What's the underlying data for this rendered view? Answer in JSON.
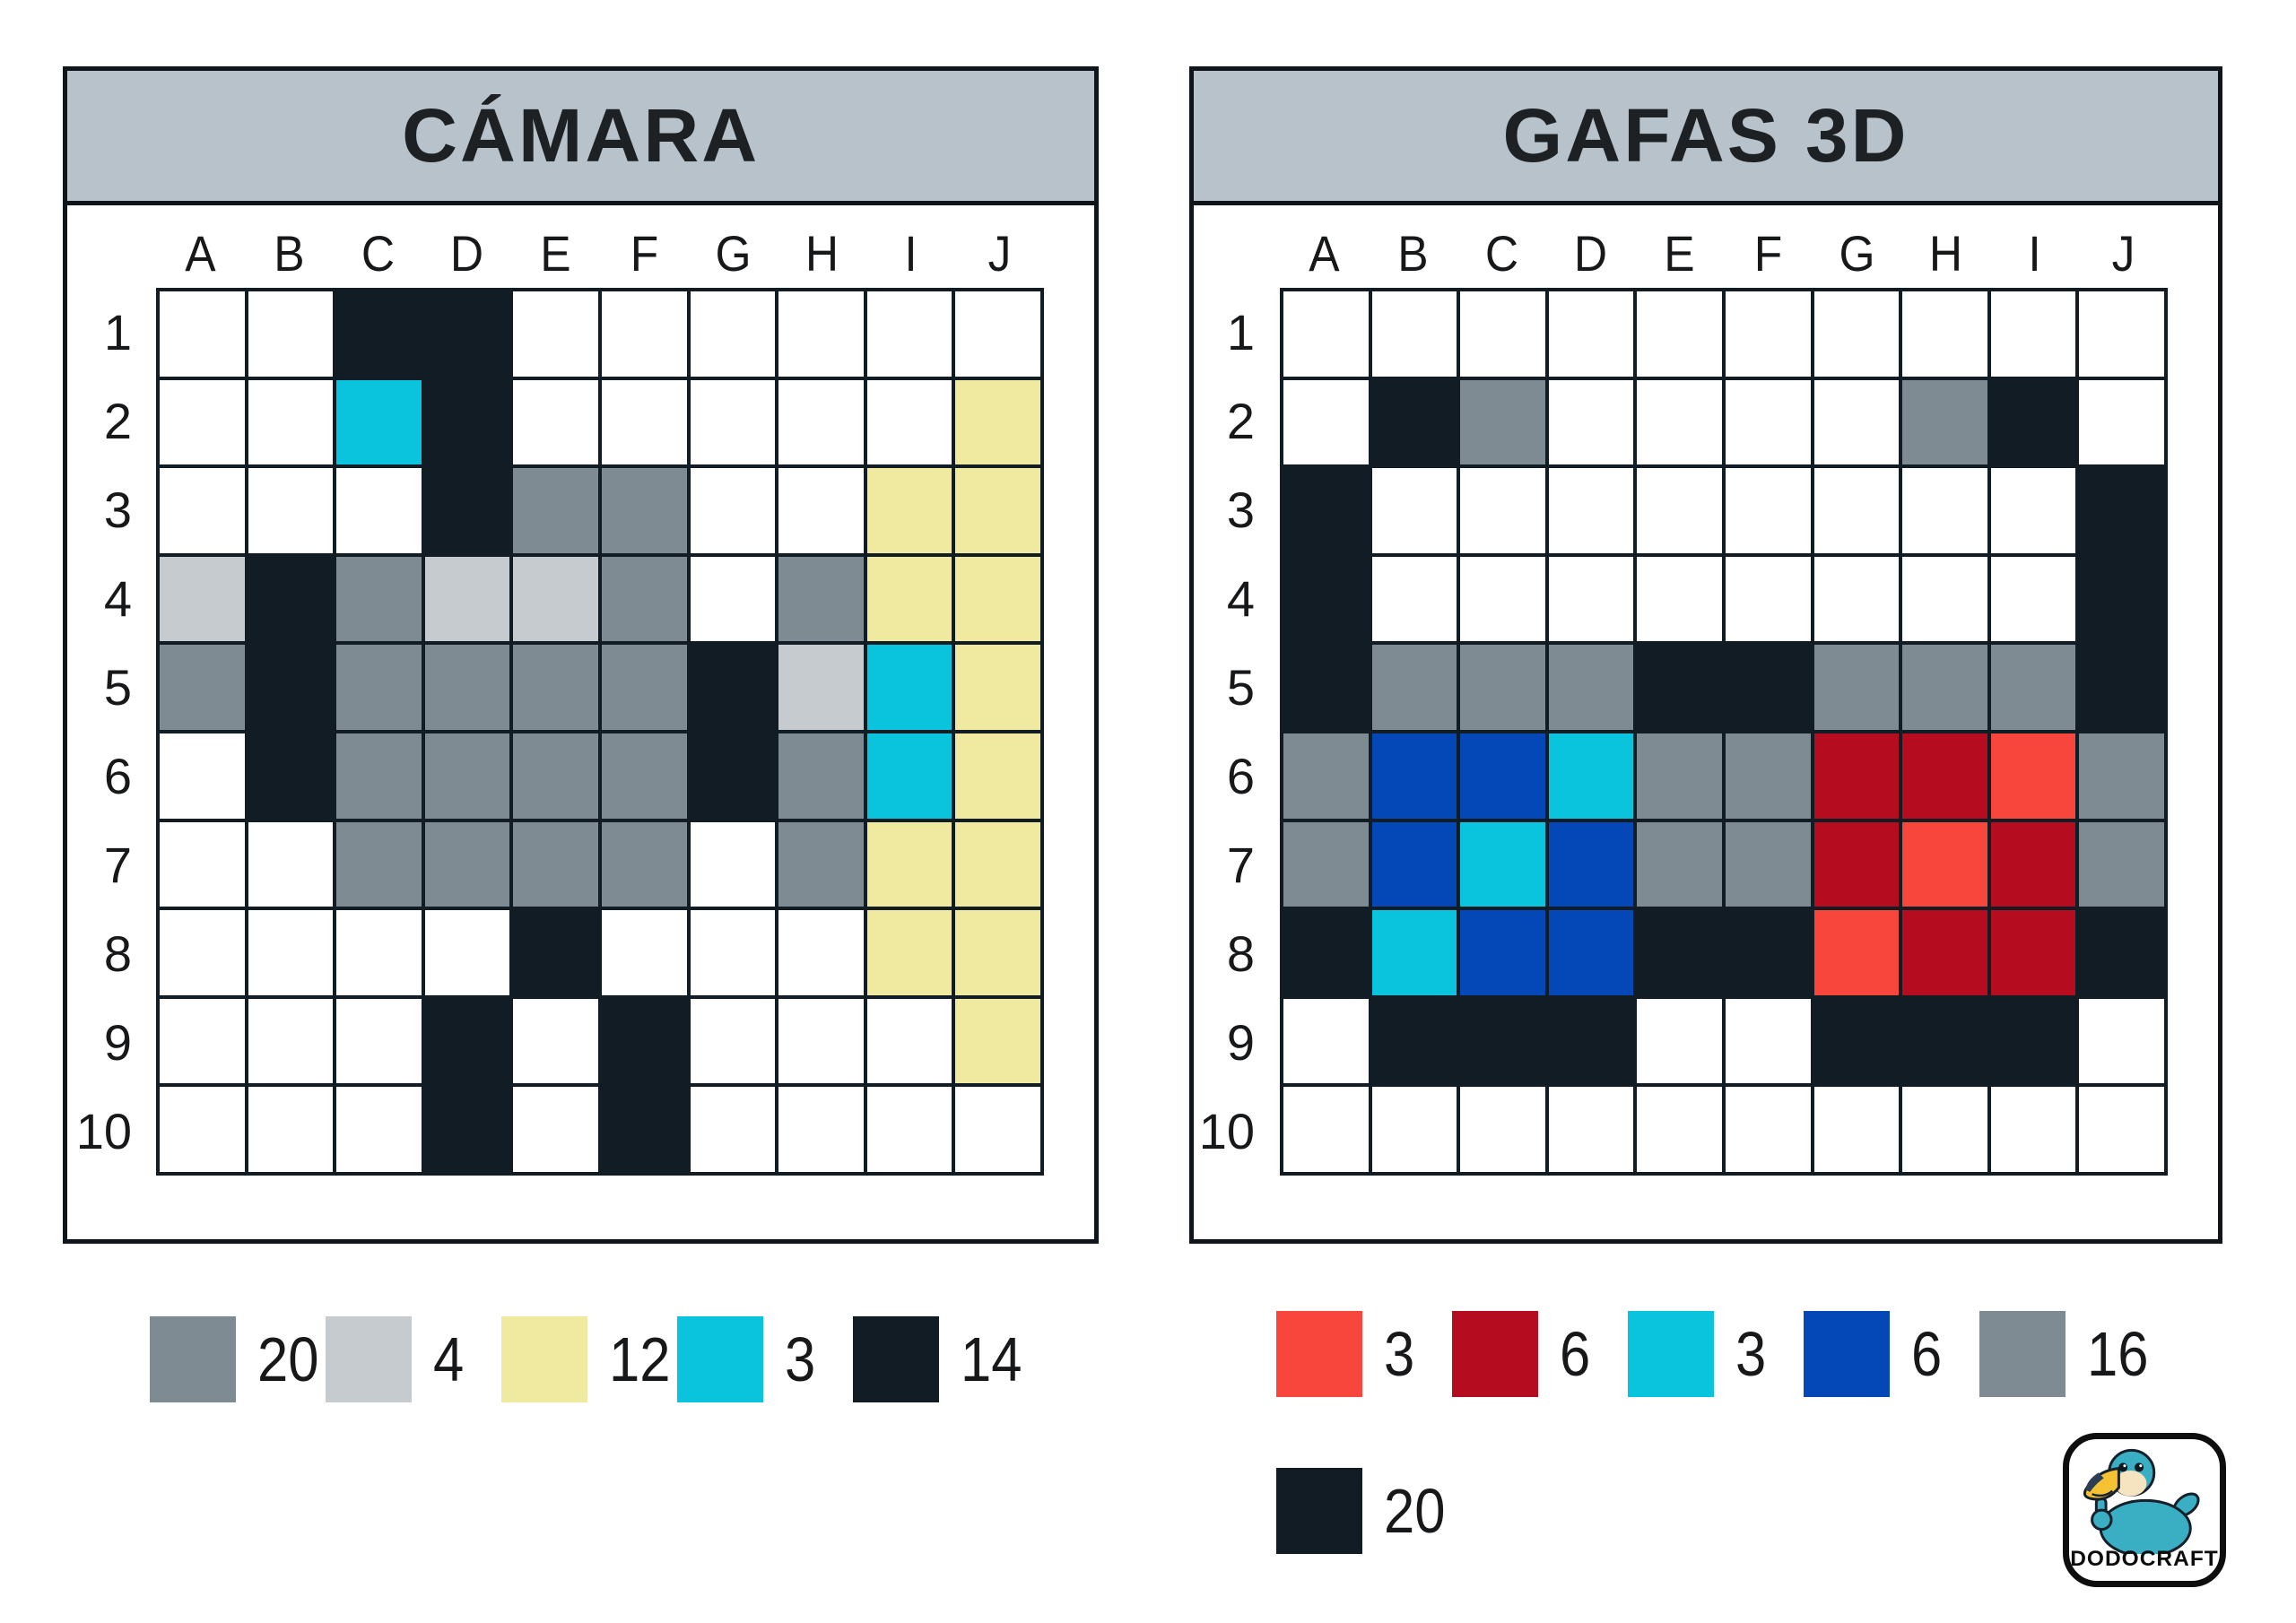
{
  "colors": {
    "ink": "#121c24",
    "header_bg": "#b7c2cb",
    "panel_border": "#10151b",
    "title_text": "#1e2124",
    "label_text": "#17181a",
    "logo_teal": "#3aafc4",
    "logo_beak": "#f5c233",
    "logo_beak_tip": "#2c3e54",
    "logo_face": "#f6e3c0",
    "logo_outline": "#15202b"
  },
  "palette": {
    ".": "#ffffff",
    "K": "#121c24",
    "G": "#7f8b92",
    "L": "#c5cbce",
    "Y": "#f0e9a0",
    "C": "#0ac4dd",
    "B": "#0448b8",
    "R": "#f9463d",
    "D": "#b50c20"
  },
  "palette_names": {
    ".": "white",
    "K": "black",
    "G": "gray",
    "L": "light-gray",
    "Y": "yellow",
    "C": "cyan",
    "B": "blue",
    "R": "red",
    "D": "dark-red"
  },
  "panels": [
    {
      "title": "CÁMARA",
      "columns": [
        "A",
        "B",
        "C",
        "D",
        "E",
        "F",
        "G",
        "H",
        "I",
        "J"
      ],
      "rows": [
        "1",
        "2",
        "3",
        "4",
        "5",
        "6",
        "7",
        "8",
        "9",
        "10"
      ],
      "grid": [
        "..KK......",
        "..CK.....Y",
        "...KGG..YY",
        "LKGLLG.GYY",
        "GKGGGGKLCY",
        ".KGGGGKGCY",
        "..GGGG.GYY",
        "....K...YY",
        "...K.K...Y",
        "...K.K...."
      ],
      "legend_rows": [
        [
          {
            "color": "G",
            "count": "20"
          },
          {
            "color": "L",
            "count": "4"
          },
          {
            "color": "Y",
            "count": "12"
          },
          {
            "color": "C",
            "count": "3"
          },
          {
            "color": "K",
            "count": "14"
          }
        ]
      ]
    },
    {
      "title": "GAFAS 3D",
      "columns": [
        "A",
        "B",
        "C",
        "D",
        "E",
        "F",
        "G",
        "H",
        "I",
        "J"
      ],
      "rows": [
        "1",
        "2",
        "3",
        "4",
        "5",
        "6",
        "7",
        "8",
        "9",
        "10"
      ],
      "grid": [
        "..........",
        ".KG....GK.",
        "K........K",
        "K........K",
        "KGGGKKGGGK",
        "GBBCGGDDRG",
        "GBCBGGDRDG",
        "KCBBKKRDDK",
        ".KKK..KKK.",
        ".........."
      ],
      "legend_rows": [
        [
          {
            "color": "R",
            "count": "3"
          },
          {
            "color": "D",
            "count": "6"
          },
          {
            "color": "C",
            "count": "3"
          },
          {
            "color": "B",
            "count": "6"
          },
          {
            "color": "G",
            "count": "16"
          }
        ],
        [
          {
            "color": "K",
            "count": "20"
          }
        ]
      ]
    }
  ],
  "logo": {
    "text": "DODOCRAFT"
  }
}
